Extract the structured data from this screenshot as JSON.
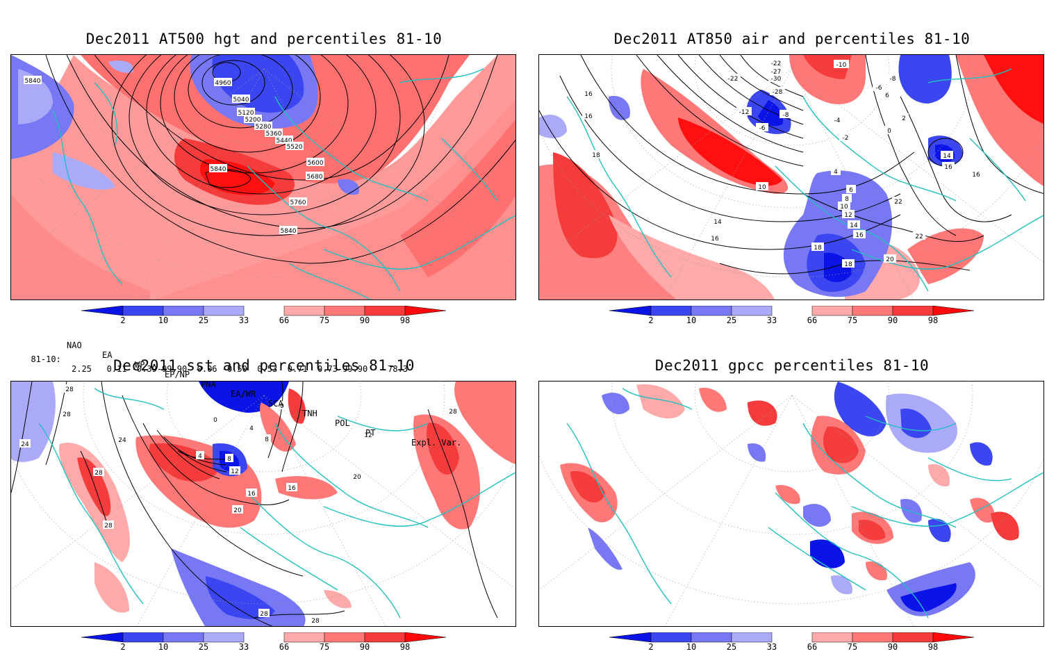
{
  "panels": [
    {
      "id": "p1",
      "title": "Dec2011 AT500 hgt and percentiles 81-10",
      "contour_labels": [
        "5840",
        "4960",
        "5040",
        "5120",
        "5200",
        "5280",
        "5360",
        "5440",
        "5520",
        "5600",
        "5680",
        "5840",
        "5760",
        "5840"
      ]
    },
    {
      "id": "p2",
      "title": "Dec2011 AT850 air and percentiles 81-10",
      "contour_labels": [
        "16",
        "16",
        "18",
        "-22",
        "-22",
        "-27",
        "-30",
        "-28",
        "-12",
        "-8",
        "-6",
        "-10",
        "-8",
        "-6",
        "-4",
        "6",
        "-2",
        "2",
        "0",
        "4",
        "10",
        "6",
        "8",
        "10",
        "12",
        "14",
        "16",
        "18",
        "18",
        "20",
        "22",
        "22",
        "14",
        "16",
        "16",
        "14",
        "16"
      ]
    },
    {
      "id": "p3",
      "title": "Dec2011 sst and percentiles 81-10",
      "contour_labels": [
        "28",
        "28",
        "24",
        "24",
        "28",
        "28",
        "0",
        "0",
        "4",
        "4",
        "8",
        "8",
        "12",
        "16",
        "16",
        "20",
        "20",
        "12",
        "28",
        "28",
        "28"
      ]
    },
    {
      "id": "p4",
      "title": "Dec2011 gpcc percentiles 81-10",
      "contour_labels": []
    }
  ],
  "colorbar": {
    "labels": [
      "2",
      "10",
      "25",
      "33",
      "66",
      "75",
      "90",
      "98"
    ],
    "colors": [
      "#0a14e6",
      "#3c46f0",
      "#7878f5",
      "#aaaaf8",
      "#ffaaaa",
      "#ff7878",
      "#f53c3c",
      "#ff0a0a"
    ]
  },
  "indices": {
    "header": [
      "NAO",
      "EA",
      "WP",
      "EP/NP",
      "PNA",
      "EA/WR",
      "SCA",
      "TNH",
      "POL",
      "PT",
      "Expl. Var."
    ],
    "row_label": "81-10:",
    "row_values": "2.25   0.11 -0.39-99.90  0.06 -0.50  0.53  0.71  0.73-99.90    78.3"
  }
}
